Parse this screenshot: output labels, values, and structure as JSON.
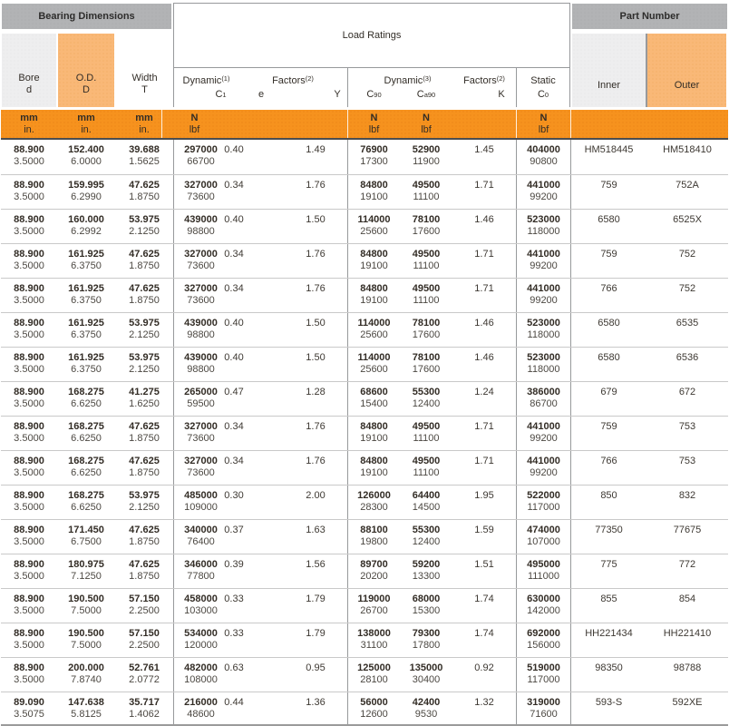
{
  "groups": {
    "bearing_dimensions": "Bearing Dimensions",
    "load_ratings": "Load Ratings",
    "part_number": "Part Number",
    "inner": "Inner",
    "outer": "Outer"
  },
  "dim_headers": {
    "bore_top": "Bore",
    "bore_bottom": "d",
    "od_top": "O.D.",
    "od_bottom": "D",
    "width_top": "Width",
    "width_bottom": "T"
  },
  "subheaders": {
    "dynamic1_label": "Dynamic",
    "dynamic1_note": "(1)",
    "c1_sym": "C",
    "c1_sub": "1",
    "factors_label": "Factors",
    "factors_note": "(2)",
    "e_label": "e",
    "y_label": "Y",
    "dynamic3_label": "Dynamic",
    "dynamic3_note": "(3)",
    "c90_sym": "C",
    "c90_sub": "90",
    "ca90_sym": "C",
    "ca90_sub": "a90",
    "k_label": "K",
    "static_label": "Static",
    "c0_sym": "C",
    "c0_sub": "0"
  },
  "units": {
    "mm": "mm",
    "in": "in.",
    "n": "N",
    "lbf": "lbf"
  },
  "colors": {
    "accent_orange": "#f6921e",
    "light_orange": "#f9b877",
    "header_gray": "#b2b3b5",
    "light_gray": "#eeeeef",
    "divider_gray": "#97999b"
  },
  "rows": [
    {
      "bore_mm": "88.900",
      "bore_in": "3.5000",
      "od_mm": "152.400",
      "od_in": "6.0000",
      "width_mm": "39.688",
      "width_in": "1.5625",
      "c1_n": "297000",
      "c1_lbf": "66700",
      "e": "0.40",
      "y": "1.49",
      "c90_n": "76900",
      "c90_lbf": "17300",
      "ca90_n": "52900",
      "ca90_lbf": "11900",
      "k": "1.45",
      "c0_n": "404000",
      "c0_lbf": "90800",
      "inner": "HM518445",
      "outer": "HM518410"
    },
    {
      "bore_mm": "88.900",
      "bore_in": "3.5000",
      "od_mm": "159.995",
      "od_in": "6.2990",
      "width_mm": "47.625",
      "width_in": "1.8750",
      "c1_n": "327000",
      "c1_lbf": "73600",
      "e": "0.34",
      "y": "1.76",
      "c90_n": "84800",
      "c90_lbf": "19100",
      "ca90_n": "49500",
      "ca90_lbf": "11100",
      "k": "1.71",
      "c0_n": "441000",
      "c0_lbf": "99200",
      "inner": "759",
      "outer": "752A"
    },
    {
      "bore_mm": "88.900",
      "bore_in": "3.5000",
      "od_mm": "160.000",
      "od_in": "6.2992",
      "width_mm": "53.975",
      "width_in": "2.1250",
      "c1_n": "439000",
      "c1_lbf": "98800",
      "e": "0.40",
      "y": "1.50",
      "c90_n": "114000",
      "c90_lbf": "25600",
      "ca90_n": "78100",
      "ca90_lbf": "17600",
      "k": "1.46",
      "c0_n": "523000",
      "c0_lbf": "118000",
      "inner": "6580",
      "outer": "6525X"
    },
    {
      "bore_mm": "88.900",
      "bore_in": "3.5000",
      "od_mm": "161.925",
      "od_in": "6.3750",
      "width_mm": "47.625",
      "width_in": "1.8750",
      "c1_n": "327000",
      "c1_lbf": "73600",
      "e": "0.34",
      "y": "1.76",
      "c90_n": "84800",
      "c90_lbf": "19100",
      "ca90_n": "49500",
      "ca90_lbf": "11100",
      "k": "1.71",
      "c0_n": "441000",
      "c0_lbf": "99200",
      "inner": "759",
      "outer": "752"
    },
    {
      "bore_mm": "88.900",
      "bore_in": "3.5000",
      "od_mm": "161.925",
      "od_in": "6.3750",
      "width_mm": "47.625",
      "width_in": "1.8750",
      "c1_n": "327000",
      "c1_lbf": "73600",
      "e": "0.34",
      "y": "1.76",
      "c90_n": "84800",
      "c90_lbf": "19100",
      "ca90_n": "49500",
      "ca90_lbf": "11100",
      "k": "1.71",
      "c0_n": "441000",
      "c0_lbf": "99200",
      "inner": "766",
      "outer": "752"
    },
    {
      "bore_mm": "88.900",
      "bore_in": "3.5000",
      "od_mm": "161.925",
      "od_in": "6.3750",
      "width_mm": "53.975",
      "width_in": "2.1250",
      "c1_n": "439000",
      "c1_lbf": "98800",
      "e": "0.40",
      "y": "1.50",
      "c90_n": "114000",
      "c90_lbf": "25600",
      "ca90_n": "78100",
      "ca90_lbf": "17600",
      "k": "1.46",
      "c0_n": "523000",
      "c0_lbf": "118000",
      "inner": "6580",
      "outer": "6535"
    },
    {
      "bore_mm": "88.900",
      "bore_in": "3.5000",
      "od_mm": "161.925",
      "od_in": "6.3750",
      "width_mm": "53.975",
      "width_in": "2.1250",
      "c1_n": "439000",
      "c1_lbf": "98800",
      "e": "0.40",
      "y": "1.50",
      "c90_n": "114000",
      "c90_lbf": "25600",
      "ca90_n": "78100",
      "ca90_lbf": "17600",
      "k": "1.46",
      "c0_n": "523000",
      "c0_lbf": "118000",
      "inner": "6580",
      "outer": "6536"
    },
    {
      "bore_mm": "88.900",
      "bore_in": "3.5000",
      "od_mm": "168.275",
      "od_in": "6.6250",
      "width_mm": "41.275",
      "width_in": "1.6250",
      "c1_n": "265000",
      "c1_lbf": "59500",
      "e": "0.47",
      "y": "1.28",
      "c90_n": "68600",
      "c90_lbf": "15400",
      "ca90_n": "55300",
      "ca90_lbf": "12400",
      "k": "1.24",
      "c0_n": "386000",
      "c0_lbf": "86700",
      "inner": "679",
      "outer": "672"
    },
    {
      "bore_mm": "88.900",
      "bore_in": "3.5000",
      "od_mm": "168.275",
      "od_in": "6.6250",
      "width_mm": "47.625",
      "width_in": "1.8750",
      "c1_n": "327000",
      "c1_lbf": "73600",
      "e": "0.34",
      "y": "1.76",
      "c90_n": "84800",
      "c90_lbf": "19100",
      "ca90_n": "49500",
      "ca90_lbf": "11100",
      "k": "1.71",
      "c0_n": "441000",
      "c0_lbf": "99200",
      "inner": "759",
      "outer": "753"
    },
    {
      "bore_mm": "88.900",
      "bore_in": "3.5000",
      "od_mm": "168.275",
      "od_in": "6.6250",
      "width_mm": "47.625",
      "width_in": "1.8750",
      "c1_n": "327000",
      "c1_lbf": "73600",
      "e": "0.34",
      "y": "1.76",
      "c90_n": "84800",
      "c90_lbf": "19100",
      "ca90_n": "49500",
      "ca90_lbf": "11100",
      "k": "1.71",
      "c0_n": "441000",
      "c0_lbf": "99200",
      "inner": "766",
      "outer": "753"
    },
    {
      "bore_mm": "88.900",
      "bore_in": "3.5000",
      "od_mm": "168.275",
      "od_in": "6.6250",
      "width_mm": "53.975",
      "width_in": "2.1250",
      "c1_n": "485000",
      "c1_lbf": "109000",
      "e": "0.30",
      "y": "2.00",
      "c90_n": "126000",
      "c90_lbf": "28300",
      "ca90_n": "64400",
      "ca90_lbf": "14500",
      "k": "1.95",
      "c0_n": "522000",
      "c0_lbf": "117000",
      "inner": "850",
      "outer": "832"
    },
    {
      "bore_mm": "88.900",
      "bore_in": "3.5000",
      "od_mm": "171.450",
      "od_in": "6.7500",
      "width_mm": "47.625",
      "width_in": "1.8750",
      "c1_n": "340000",
      "c1_lbf": "76400",
      "e": "0.37",
      "y": "1.63",
      "c90_n": "88100",
      "c90_lbf": "19800",
      "ca90_n": "55300",
      "ca90_lbf": "12400",
      "k": "1.59",
      "c0_n": "474000",
      "c0_lbf": "107000",
      "inner": "77350",
      "outer": "77675"
    },
    {
      "bore_mm": "88.900",
      "bore_in": "3.5000",
      "od_mm": "180.975",
      "od_in": "7.1250",
      "width_mm": "47.625",
      "width_in": "1.8750",
      "c1_n": "346000",
      "c1_lbf": "77800",
      "e": "0.39",
      "y": "1.56",
      "c90_n": "89700",
      "c90_lbf": "20200",
      "ca90_n": "59200",
      "ca90_lbf": "13300",
      "k": "1.51",
      "c0_n": "495000",
      "c0_lbf": "111000",
      "inner": "775",
      "outer": "772"
    },
    {
      "bore_mm": "88.900",
      "bore_in": "3.5000",
      "od_mm": "190.500",
      "od_in": "7.5000",
      "width_mm": "57.150",
      "width_in": "2.2500",
      "c1_n": "458000",
      "c1_lbf": "103000",
      "e": "0.33",
      "y": "1.79",
      "c90_n": "119000",
      "c90_lbf": "26700",
      "ca90_n": "68000",
      "ca90_lbf": "15300",
      "k": "1.74",
      "c0_n": "630000",
      "c0_lbf": "142000",
      "inner": "855",
      "outer": "854"
    },
    {
      "bore_mm": "88.900",
      "bore_in": "3.5000",
      "od_mm": "190.500",
      "od_in": "7.5000",
      "width_mm": "57.150",
      "width_in": "2.2500",
      "c1_n": "534000",
      "c1_lbf": "120000",
      "e": "0.33",
      "y": "1.79",
      "c90_n": "138000",
      "c90_lbf": "31100",
      "ca90_n": "79300",
      "ca90_lbf": "17800",
      "k": "1.74",
      "c0_n": "692000",
      "c0_lbf": "156000",
      "inner": "HH221434",
      "outer": "HH221410"
    },
    {
      "bore_mm": "88.900",
      "bore_in": "3.5000",
      "od_mm": "200.000",
      "od_in": "7.8740",
      "width_mm": "52.761",
      "width_in": "2.0772",
      "c1_n": "482000",
      "c1_lbf": "108000",
      "e": "0.63",
      "y": "0.95",
      "c90_n": "125000",
      "c90_lbf": "28100",
      "ca90_n": "135000",
      "ca90_lbf": "30400",
      "k": "0.92",
      "c0_n": "519000",
      "c0_lbf": "117000",
      "inner": "98350",
      "outer": "98788"
    },
    {
      "bore_mm": "89.090",
      "bore_in": "3.5075",
      "od_mm": "147.638",
      "od_in": "5.8125",
      "width_mm": "35.717",
      "width_in": "1.4062",
      "c1_n": "216000",
      "c1_lbf": "48600",
      "e": "0.44",
      "y": "1.36",
      "c90_n": "56000",
      "c90_lbf": "12600",
      "ca90_n": "42400",
      "ca90_lbf": "9530",
      "k": "1.32",
      "c0_n": "319000",
      "c0_lbf": "71600",
      "inner": "593-S",
      "outer": "592XE"
    }
  ]
}
